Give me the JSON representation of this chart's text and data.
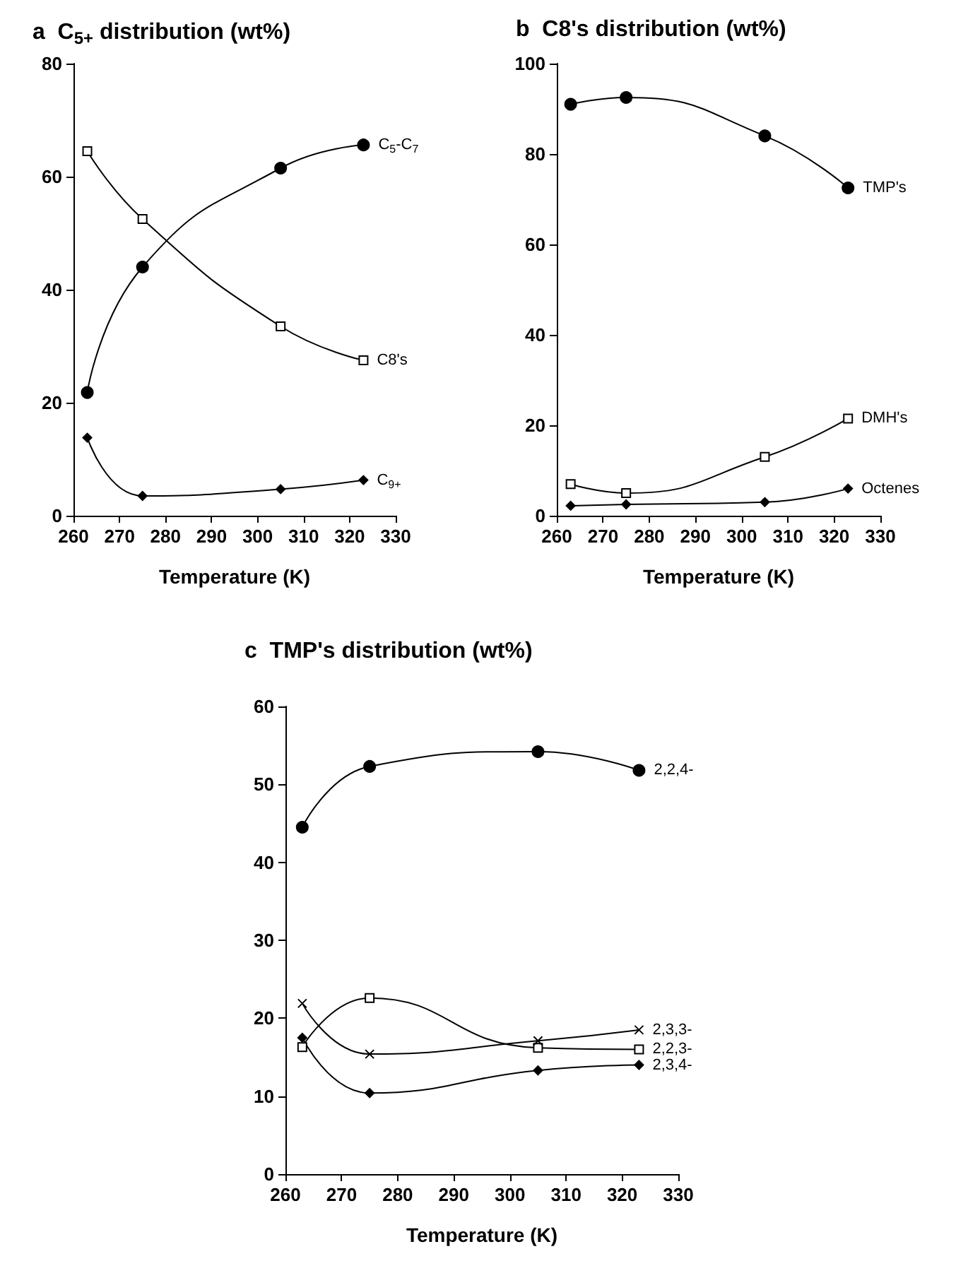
{
  "chart_data": [
    {
      "type": "line",
      "title": "a  C$_{5+}$ distribution (wt%)",
      "xlabel": "Temperature (K)",
      "x": [
        263,
        275,
        305,
        323
      ],
      "xlim": [
        260,
        330
      ],
      "xticks": [
        260,
        270,
        280,
        290,
        300,
        310,
        320,
        330
      ],
      "ylim": [
        0,
        80
      ],
      "yticks": [
        0,
        20,
        40,
        60,
        80
      ],
      "grid": false,
      "legend": false,
      "series": [
        {
          "name": "C$_{5}$-C$_{7}$",
          "color": "#000000",
          "marker": "circle",
          "values": [
            21.8,
            44,
            61.5,
            65.6
          ]
        },
        {
          "name": "C8's",
          "color": "#000000",
          "marker": "square",
          "values": [
            64.5,
            52.5,
            33.5,
            27.5
          ]
        },
        {
          "name": "C$_{9+}$",
          "color": "#000000",
          "marker": "diamond",
          "values": [
            13.8,
            3.5,
            4.7,
            6.3
          ]
        }
      ]
    },
    {
      "type": "line",
      "title": "b  C8's distribution (wt%)",
      "xlabel": "Temperature (K)",
      "x": [
        263,
        275,
        305,
        323
      ],
      "xlim": [
        260,
        330
      ],
      "xticks": [
        260,
        270,
        280,
        290,
        300,
        310,
        320,
        330
      ],
      "ylim": [
        0,
        100
      ],
      "yticks": [
        0,
        20,
        40,
        60,
        80,
        100
      ],
      "grid": false,
      "legend": false,
      "series": [
        {
          "name": "TMP's",
          "color": "#000000",
          "marker": "circle",
          "values": [
            91,
            92.5,
            84,
            72.5
          ]
        },
        {
          "name": "DMH's",
          "color": "#000000",
          "marker": "square",
          "values": [
            7,
            5,
            13,
            21.5
          ]
        },
        {
          "name": "Octenes",
          "color": "#000000",
          "marker": "diamond",
          "values": [
            2.2,
            2.5,
            3,
            6
          ]
        }
      ]
    },
    {
      "type": "line",
      "title": "c  TMP's distribution (wt%)",
      "xlabel": "Temperature (K)",
      "x": [
        263,
        275,
        305,
        323
      ],
      "xlim": [
        260,
        330
      ],
      "xticks": [
        260,
        270,
        280,
        290,
        300,
        310,
        320,
        330
      ],
      "ylim": [
        0,
        60
      ],
      "yticks": [
        0,
        10,
        20,
        30,
        40,
        50,
        60
      ],
      "grid": false,
      "legend": false,
      "series": [
        {
          "name": "2,2,4-",
          "color": "#000000",
          "marker": "circle",
          "values": [
            44.5,
            52.3,
            54.2,
            51.8
          ]
        },
        {
          "name": "2,2,3-",
          "color": "#000000",
          "marker": "square",
          "values": [
            16.3,
            22.6,
            16.2,
            16.0
          ]
        },
        {
          "name": "2,3,3-",
          "color": "#000000",
          "marker": "cross",
          "values": [
            21.9,
            15.4,
            17.1,
            18.5
          ]
        },
        {
          "name": "2,3,4-",
          "color": "#000000",
          "marker": "diamond",
          "values": [
            17.5,
            10.4,
            13.3,
            14
          ]
        }
      ]
    }
  ]
}
